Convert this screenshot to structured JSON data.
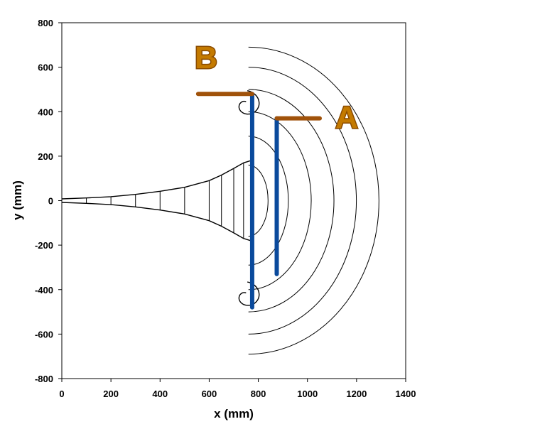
{
  "chart_data": {
    "type": "line",
    "title": "",
    "xlabel": "x   (mm)",
    "ylabel": "y   (mm)",
    "xlim": [
      0,
      1400
    ],
    "ylim": [
      -800,
      800
    ],
    "xticks": [
      0,
      200,
      400,
      600,
      800,
      1000,
      1200,
      1400
    ],
    "yticks": [
      -800,
      -600,
      -400,
      -200,
      0,
      200,
      400,
      600,
      800
    ],
    "grid": false,
    "legend": "none",
    "colors": {
      "contours": "#000000",
      "measurement_lines": "#0a4a9c",
      "marker_bars": "#a0520a"
    },
    "horn_profile": {
      "x": [
        0,
        100,
        200,
        300,
        400,
        500,
        600,
        650,
        700,
        740,
        770
      ],
      "y": [
        8,
        12,
        18,
        28,
        42,
        60,
        90,
        115,
        145,
        170,
        180
      ]
    },
    "wavefront_x": [
      100,
      200,
      300,
      400,
      500,
      600,
      650,
      700,
      740,
      770
    ],
    "measurement_lines": [
      {
        "label": "B",
        "x": 775,
        "y_range": [
          -480,
          480
        ],
        "bar_y": 480,
        "bar_x_range": [
          555,
          775
        ]
      },
      {
        "label": "A",
        "x": 875,
        "y_range": [
          -330,
          370
        ],
        "bar_y": 370,
        "bar_x_range": [
          875,
          1050
        ]
      }
    ],
    "markers": {
      "A": "A",
      "B": "B"
    }
  }
}
